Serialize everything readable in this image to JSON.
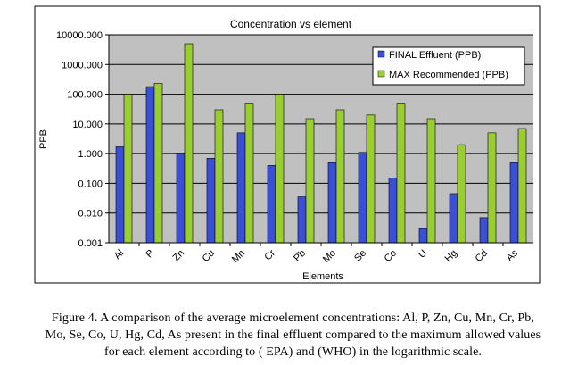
{
  "chart_data": {
    "type": "bar",
    "title": "Concentration vs element",
    "xlabel": "Elements",
    "ylabel": "PPB",
    "yscale": "log",
    "ylim": [
      0.001,
      10000
    ],
    "yticks": [
      "0.001",
      "0.010",
      "0.100",
      "1.000",
      "10.000",
      "100.000",
      "1000.000",
      "10000.000"
    ],
    "categories": [
      "Al",
      "P",
      "Zn",
      "Cu",
      "Mn",
      "Cr",
      "Pb",
      "Mo",
      "Se",
      "Co",
      "U",
      "Hg",
      "Cd",
      "As"
    ],
    "series": [
      {
        "name": "FINAL Effluent (PPB)",
        "color": "#3b4fd6",
        "values": [
          1.7,
          180,
          1.0,
          0.7,
          5.0,
          0.4,
          0.035,
          0.5,
          1.1,
          0.15,
          0.003,
          0.045,
          0.007,
          0.5
        ]
      },
      {
        "name": "MAX Recommended (PPB)",
        "color": "#9acd32",
        "values": [
          100,
          230,
          5000,
          30,
          50,
          100,
          15,
          30,
          20,
          50,
          15,
          2,
          5,
          7
        ]
      }
    ],
    "grid": true,
    "legend": "top-right"
  },
  "caption": {
    "line1": "Figure 4. A comparison of the average microelement concentrations: Al, P, Zn, Cu, Mn, Cr, Pb,",
    "line2": "Mo, Se, Co, U, Hg, Cd, As present in the final effluent compared to the maximum allowed values",
    "line3": "for each element according to ( EPA) and (WHO) in the logarithmic scale."
  }
}
